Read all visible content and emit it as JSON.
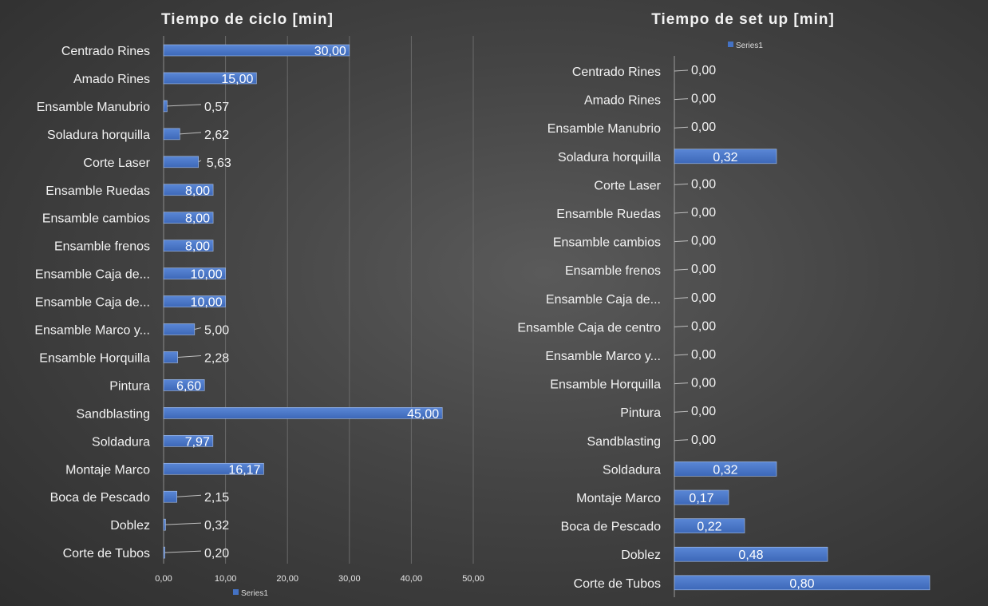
{
  "chart_data": [
    {
      "type": "bar",
      "orientation": "horizontal",
      "title": "Tiempo de ciclo [min]",
      "categories": [
        "Centrado Rines",
        "Amado Rines",
        "Ensamble Manubrio",
        "Soladura horquilla",
        "Corte Laser",
        "Ensamble Ruedas",
        "Ensamble cambios",
        "Ensamble frenos",
        "Ensamble Caja de...",
        "Ensamble Caja de...",
        "Ensamble Marco y...",
        "Ensamble Horquilla",
        "Pintura",
        "Sandblasting",
        "Soldadura",
        "Montaje Marco",
        "Boca de Pescado",
        "Doblez",
        "Corte de Tubos"
      ],
      "series": [
        {
          "name": "Series1",
          "values": [
            30.0,
            15.0,
            0.57,
            2.62,
            5.63,
            8.0,
            8.0,
            8.0,
            10.0,
            10.0,
            5.0,
            2.28,
            6.6,
            45.0,
            7.97,
            16.17,
            2.15,
            0.32,
            0.2
          ],
          "labels": [
            "30,00",
            "15,00",
            "0,57",
            "2,62",
            "5,63",
            "8,00",
            "8,00",
            "8,00",
            "10,00",
            "10,00",
            "5,00",
            "2,28",
            "6,60",
            "45,00",
            "7,97",
            "16,17",
            "2,15",
            "0,32",
            "0,20"
          ]
        }
      ],
      "xlim": [
        0,
        50
      ],
      "x_ticks": [
        "0,00",
        "10,00",
        "20,00",
        "30,00",
        "40,00",
        "50,00"
      ],
      "grid": true,
      "legend_position": "bottom",
      "bar_color": "#4472c4"
    },
    {
      "type": "bar",
      "orientation": "horizontal",
      "title": "Tiempo de set up [min]",
      "categories": [
        "Centrado Rines",
        "Amado Rines",
        "Ensamble Manubrio",
        "Soladura horquilla",
        "Corte Laser",
        "Ensamble Ruedas",
        "Ensamble cambios",
        "Ensamble frenos",
        "Ensamble Caja de...",
        "Ensamble Caja de centro",
        "Ensamble Marco y...",
        "Ensamble Horquilla",
        "Pintura",
        "Sandblasting",
        "Soldadura",
        "Montaje Marco",
        "Boca de Pescado",
        "Doblez",
        "Corte de Tubos"
      ],
      "series": [
        {
          "name": "Series1",
          "values": [
            0.0,
            0.0,
            0.0,
            0.32,
            0.0,
            0.0,
            0.0,
            0.0,
            0.0,
            0.0,
            0.0,
            0.0,
            0.0,
            0.0,
            0.32,
            0.17,
            0.22,
            0.48,
            0.8
          ],
          "labels": [
            "0,00",
            "0,00",
            "0,00",
            "0,32",
            "0,00",
            "0,00",
            "0,00",
            "0,00",
            "0,00",
            "0,00",
            "0,00",
            "0,00",
            "0,00",
            "0,00",
            "0,32",
            "0,17",
            "0,22",
            "0,48",
            "0,80"
          ]
        }
      ],
      "xlim": [
        0,
        0.8
      ],
      "grid": false,
      "legend_position": "top",
      "bar_color": "#4472c4"
    }
  ]
}
